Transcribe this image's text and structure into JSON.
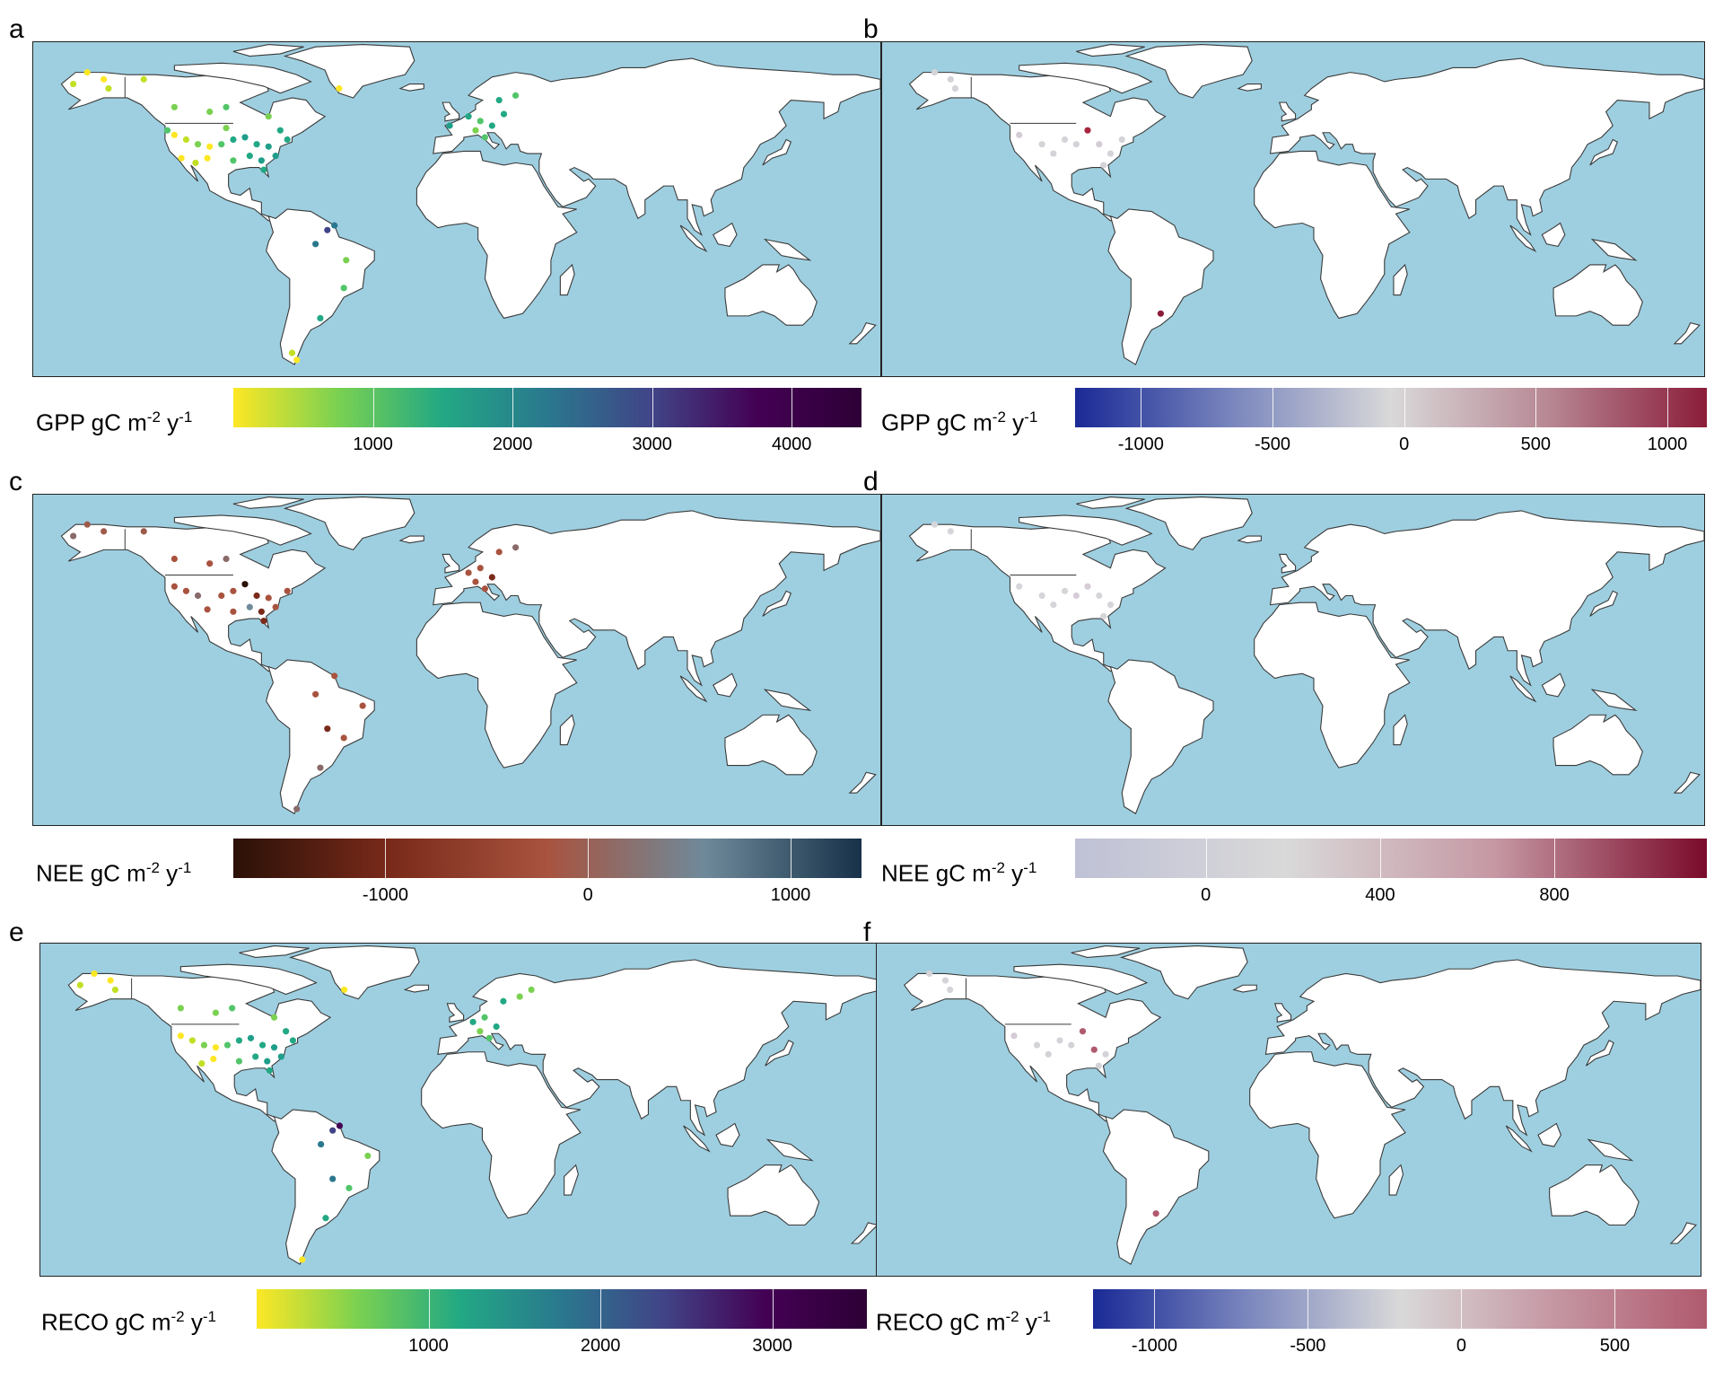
{
  "panels": [
    {
      "id": "a",
      "letter": "a",
      "legend": {
        "variable": "GPP",
        "unit_base": "gC m",
        "exp1": "-2",
        "unit_mid": " y",
        "exp2": "-1",
        "colors": [
          "#fde725",
          "#7ad151",
          "#22a884",
          "#2a788e",
          "#414487",
          "#440154",
          "#2d0036"
        ],
        "range": [
          0,
          4500
        ],
        "ticks": [
          1000,
          2000,
          3000,
          4000
        ]
      },
      "sites": [
        {
          "lon": -150,
          "lat": 68,
          "c": "#fde725"
        },
        {
          "lon": -157,
          "lat": 71,
          "c": "#fde725"
        },
        {
          "lon": -163,
          "lat": 66,
          "c": "#c2df23"
        },
        {
          "lon": -148,
          "lat": 64,
          "c": "#c2df23"
        },
        {
          "lon": -133,
          "lat": 68,
          "c": "#c2df23"
        },
        {
          "lon": -120,
          "lat": 56,
          "c": "#7ad151"
        },
        {
          "lon": -105,
          "lat": 54,
          "c": "#7ad151"
        },
        {
          "lon": -98,
          "lat": 56,
          "c": "#52c569"
        },
        {
          "lon": -80,
          "lat": 52,
          "c": "#7ad151"
        },
        {
          "lon": -75,
          "lat": 46,
          "c": "#22a884"
        },
        {
          "lon": -120,
          "lat": 44,
          "c": "#fde725"
        },
        {
          "lon": -115,
          "lat": 42,
          "c": "#c2df23"
        },
        {
          "lon": -110,
          "lat": 40,
          "c": "#7ad151"
        },
        {
          "lon": -105,
          "lat": 39,
          "c": "#fde725"
        },
        {
          "lon": -100,
          "lat": 40,
          "c": "#52c569"
        },
        {
          "lon": -95,
          "lat": 42,
          "c": "#22a884"
        },
        {
          "lon": -90,
          "lat": 43,
          "c": "#1f9e89"
        },
        {
          "lon": -85,
          "lat": 40,
          "c": "#22a884"
        },
        {
          "lon": -80,
          "lat": 39,
          "c": "#1f9e89"
        },
        {
          "lon": -88,
          "lat": 35,
          "c": "#22a884"
        },
        {
          "lon": -83,
          "lat": 33,
          "c": "#1f9e89"
        },
        {
          "lon": -95,
          "lat": 33,
          "c": "#52c569"
        },
        {
          "lon": -106,
          "lat": 34,
          "c": "#fde725"
        },
        {
          "lon": -111,
          "lat": 32,
          "c": "#c2df23"
        },
        {
          "lon": -117,
          "lat": 34,
          "c": "#fde725"
        },
        {
          "lon": -82,
          "lat": 29,
          "c": "#22a884"
        },
        {
          "lon": -77,
          "lat": 35,
          "c": "#1f9e89"
        },
        {
          "lon": -72,
          "lat": 42,
          "c": "#22a884"
        },
        {
          "lon": -123,
          "lat": 46,
          "c": "#52c569"
        },
        {
          "lon": -98,
          "lat": 47,
          "c": "#7ad151"
        },
        {
          "lon": -50,
          "lat": 64,
          "c": "#fde725"
        },
        {
          "lon": -52,
          "lat": 5,
          "c": "#2a788e"
        },
        {
          "lon": -55,
          "lat": 3,
          "c": "#414487"
        },
        {
          "lon": -60,
          "lat": -3,
          "c": "#2a788e"
        },
        {
          "lon": -47,
          "lat": -10,
          "c": "#7ad151"
        },
        {
          "lon": -48,
          "lat": -22,
          "c": "#52c569"
        },
        {
          "lon": -58,
          "lat": -35,
          "c": "#22a884"
        },
        {
          "lon": -68,
          "lat": -53,
          "c": "#fde725"
        },
        {
          "lon": -70,
          "lat": -50,
          "c": "#c2df23"
        },
        {
          "lon": 5,
          "lat": 52,
          "c": "#22a884"
        },
        {
          "lon": 10,
          "lat": 50,
          "c": "#52c569"
        },
        {
          "lon": 15,
          "lat": 48,
          "c": "#22a884"
        },
        {
          "lon": 8,
          "lat": 46,
          "c": "#7ad151"
        },
        {
          "lon": 25,
          "lat": 61,
          "c": "#52c569"
        },
        {
          "lon": 18,
          "lat": 59,
          "c": "#22a884"
        },
        {
          "lon": 12,
          "lat": 43,
          "c": "#52c569"
        },
        {
          "lon": -3,
          "lat": 48,
          "c": "#1f9e89"
        },
        {
          "lon": 20,
          "lat": 53,
          "c": "#22a884"
        }
      ]
    },
    {
      "id": "b",
      "letter": "b",
      "legend": {
        "variable": "GPP",
        "unit_base": "gC m",
        "exp1": "-2",
        "unit_mid": " y",
        "exp2": "-1",
        "colors": [
          "#1a2a96",
          "#7a86bd",
          "#d9d9d9",
          "#b78794",
          "#8b1d3a"
        ],
        "range": [
          -1250,
          1150
        ],
        "ticks": [
          -1000,
          -500,
          0,
          500,
          1000
        ]
      },
      "sites": [
        {
          "lon": -150,
          "lat": 68,
          "c": "#d3d3d8"
        },
        {
          "lon": -157,
          "lat": 71,
          "c": "#d3d3d8"
        },
        {
          "lon": -148,
          "lat": 64,
          "c": "#d3d3d8"
        },
        {
          "lon": -120,
          "lat": 44,
          "c": "#d5cbd6"
        },
        {
          "lon": -110,
          "lat": 40,
          "c": "#d3d3d8"
        },
        {
          "lon": -100,
          "lat": 42,
          "c": "#d3d3d8"
        },
        {
          "lon": -90,
          "lat": 46,
          "c": "#a8263f"
        },
        {
          "lon": -95,
          "lat": 40,
          "c": "#d3d3d8"
        },
        {
          "lon": -85,
          "lat": 40,
          "c": "#d5cbd6"
        },
        {
          "lon": -80,
          "lat": 36,
          "c": "#d3d3d8"
        },
        {
          "lon": -83,
          "lat": 31,
          "c": "#d3d3d8"
        },
        {
          "lon": -75,
          "lat": 42,
          "c": "#d3d3d8"
        },
        {
          "lon": -105,
          "lat": 36,
          "c": "#d3d3d8"
        },
        {
          "lon": -58,
          "lat": -33,
          "c": "#8b1d3a"
        }
      ]
    },
    {
      "id": "c",
      "letter": "c",
      "legend": {
        "variable": "NEE",
        "unit_base": "gC m",
        "exp1": "-2",
        "unit_mid": " y",
        "exp2": "-1",
        "colors": [
          "#2b1108",
          "#7a2a1a",
          "#a8533f",
          "#6e8a9a",
          "#173149"
        ],
        "range": [
          -1750,
          1350
        ],
        "ticks": [
          -1000,
          0,
          1000
        ]
      },
      "sites": [
        {
          "lon": -150,
          "lat": 68,
          "c": "#9e5a4a"
        },
        {
          "lon": -157,
          "lat": 71,
          "c": "#9e5a4a"
        },
        {
          "lon": -163,
          "lat": 66,
          "c": "#8a6a6a"
        },
        {
          "lon": -133,
          "lat": 68,
          "c": "#9e5a4a"
        },
        {
          "lon": -120,
          "lat": 56,
          "c": "#a8533f"
        },
        {
          "lon": -105,
          "lat": 54,
          "c": "#a8533f"
        },
        {
          "lon": -98,
          "lat": 56,
          "c": "#8a6a6a"
        },
        {
          "lon": -120,
          "lat": 44,
          "c": "#a8533f"
        },
        {
          "lon": -115,
          "lat": 42,
          "c": "#a8533f"
        },
        {
          "lon": -110,
          "lat": 40,
          "c": "#8a6a6a"
        },
        {
          "lon": -100,
          "lat": 40,
          "c": "#a8533f"
        },
        {
          "lon": -95,
          "lat": 42,
          "c": "#a8533f"
        },
        {
          "lon": -90,
          "lat": 45,
          "c": "#2b1108"
        },
        {
          "lon": -85,
          "lat": 40,
          "c": "#7a2a1a"
        },
        {
          "lon": -80,
          "lat": 39,
          "c": "#a8533f"
        },
        {
          "lon": -88,
          "lat": 35,
          "c": "#6e8a9a"
        },
        {
          "lon": -83,
          "lat": 33,
          "c": "#7a2a1a"
        },
        {
          "lon": -95,
          "lat": 33,
          "c": "#a8533f"
        },
        {
          "lon": -106,
          "lat": 34,
          "c": "#a8533f"
        },
        {
          "lon": -82,
          "lat": 29,
          "c": "#7a2a1a"
        },
        {
          "lon": -77,
          "lat": 35,
          "c": "#a8533f"
        },
        {
          "lon": -72,
          "lat": 42,
          "c": "#a8533f"
        },
        {
          "lon": -52,
          "lat": 5,
          "c": "#a8533f"
        },
        {
          "lon": -60,
          "lat": -3,
          "c": "#a8533f"
        },
        {
          "lon": -40,
          "lat": -8,
          "c": "#a8533f"
        },
        {
          "lon": -55,
          "lat": -18,
          "c": "#7a2a1a"
        },
        {
          "lon": -48,
          "lat": -22,
          "c": "#a8533f"
        },
        {
          "lon": -58,
          "lat": -35,
          "c": "#8a6a6a"
        },
        {
          "lon": -68,
          "lat": -53,
          "c": "#8a6a6a"
        },
        {
          "lon": 5,
          "lat": 50,
          "c": "#a8533f"
        },
        {
          "lon": 10,
          "lat": 52,
          "c": "#a8533f"
        },
        {
          "lon": 15,
          "lat": 48,
          "c": "#7a2a1a"
        },
        {
          "lon": 8,
          "lat": 46,
          "c": "#a8533f"
        },
        {
          "lon": 25,
          "lat": 61,
          "c": "#8a6a6a"
        },
        {
          "lon": 18,
          "lat": 59,
          "c": "#a8533f"
        },
        {
          "lon": 12,
          "lat": 43,
          "c": "#a8533f"
        }
      ]
    },
    {
      "id": "d",
      "letter": "d",
      "legend": {
        "variable": "NEE",
        "unit_base": "gC m",
        "exp1": "-2",
        "unit_mid": " y",
        "exp2": "-1",
        "colors": [
          "#bfc1d6",
          "#d9d9d9",
          "#c597a3",
          "#7a0a2a"
        ],
        "range": [
          -300,
          1150
        ],
        "ticks": [
          0,
          400,
          800
        ]
      },
      "sites": [
        {
          "lon": -150,
          "lat": 68,
          "c": "#d5d5da"
        },
        {
          "lon": -157,
          "lat": 71,
          "c": "#d5d5da"
        },
        {
          "lon": -120,
          "lat": 44,
          "c": "#d5d5da"
        },
        {
          "lon": -110,
          "lat": 40,
          "c": "#d5d5da"
        },
        {
          "lon": -100,
          "lat": 42,
          "c": "#d5d5da"
        },
        {
          "lon": -95,
          "lat": 40,
          "c": "#d6ccd6"
        },
        {
          "lon": -85,
          "lat": 40,
          "c": "#d5d5da"
        },
        {
          "lon": -80,
          "lat": 36,
          "c": "#d5d5da"
        },
        {
          "lon": -83,
          "lat": 31,
          "c": "#d5d5da"
        },
        {
          "lon": -90,
          "lat": 44,
          "c": "#d6ccd6"
        },
        {
          "lon": -105,
          "lat": 36,
          "c": "#d5d5da"
        }
      ]
    },
    {
      "id": "e",
      "letter": "e",
      "legend": {
        "variable": "RECO",
        "unit_base": "gC m",
        "exp1": "-2",
        "unit_mid": " y",
        "exp2": "-1",
        "colors": [
          "#fde725",
          "#7ad151",
          "#22a884",
          "#2a788e",
          "#414487",
          "#440154",
          "#2d0036"
        ],
        "range": [
          0,
          3550
        ],
        "ticks": [
          1000,
          2000,
          3000
        ]
      },
      "sites": [
        {
          "lon": -150,
          "lat": 68,
          "c": "#fde725"
        },
        {
          "lon": -157,
          "lat": 71,
          "c": "#fde725"
        },
        {
          "lon": -163,
          "lat": 66,
          "c": "#c2df23"
        },
        {
          "lon": -148,
          "lat": 64,
          "c": "#c2df23"
        },
        {
          "lon": -120,
          "lat": 56,
          "c": "#7ad151"
        },
        {
          "lon": -105,
          "lat": 54,
          "c": "#7ad151"
        },
        {
          "lon": -98,
          "lat": 56,
          "c": "#52c569"
        },
        {
          "lon": -80,
          "lat": 52,
          "c": "#7ad151"
        },
        {
          "lon": -75,
          "lat": 46,
          "c": "#22a884"
        },
        {
          "lon": -120,
          "lat": 44,
          "c": "#fde725"
        },
        {
          "lon": -115,
          "lat": 42,
          "c": "#c2df23"
        },
        {
          "lon": -110,
          "lat": 40,
          "c": "#7ad151"
        },
        {
          "lon": -105,
          "lat": 39,
          "c": "#fde725"
        },
        {
          "lon": -100,
          "lat": 40,
          "c": "#52c569"
        },
        {
          "lon": -95,
          "lat": 42,
          "c": "#22a884"
        },
        {
          "lon": -90,
          "lat": 43,
          "c": "#1f9e89"
        },
        {
          "lon": -85,
          "lat": 40,
          "c": "#22a884"
        },
        {
          "lon": -80,
          "lat": 39,
          "c": "#1f9e89"
        },
        {
          "lon": -88,
          "lat": 35,
          "c": "#22a884"
        },
        {
          "lon": -83,
          "lat": 33,
          "c": "#1f9e89"
        },
        {
          "lon": -95,
          "lat": 33,
          "c": "#52c569"
        },
        {
          "lon": -106,
          "lat": 34,
          "c": "#fde725"
        },
        {
          "lon": -111,
          "lat": 32,
          "c": "#c2df23"
        },
        {
          "lon": -82,
          "lat": 29,
          "c": "#22a884"
        },
        {
          "lon": -77,
          "lat": 35,
          "c": "#1f9e89"
        },
        {
          "lon": -72,
          "lat": 42,
          "c": "#22a884"
        },
        {
          "lon": -50,
          "lat": 64,
          "c": "#fde725"
        },
        {
          "lon": -52,
          "lat": 5,
          "c": "#440154"
        },
        {
          "lon": -55,
          "lat": 3,
          "c": "#414487"
        },
        {
          "lon": -60,
          "lat": -3,
          "c": "#2a788e"
        },
        {
          "lon": -40,
          "lat": -8,
          "c": "#7ad151"
        },
        {
          "lon": -55,
          "lat": -18,
          "c": "#2a788e"
        },
        {
          "lon": -48,
          "lat": -22,
          "c": "#52c569"
        },
        {
          "lon": -58,
          "lat": -35,
          "c": "#22a884"
        },
        {
          "lon": -68,
          "lat": -53,
          "c": "#fde725"
        },
        {
          "lon": 5,
          "lat": 50,
          "c": "#22a884"
        },
        {
          "lon": 10,
          "lat": 52,
          "c": "#52c569"
        },
        {
          "lon": 15,
          "lat": 48,
          "c": "#22a884"
        },
        {
          "lon": 8,
          "lat": 46,
          "c": "#7ad151"
        },
        {
          "lon": 25,
          "lat": 61,
          "c": "#7ad151"
        },
        {
          "lon": 18,
          "lat": 59,
          "c": "#22a884"
        },
        {
          "lon": 12,
          "lat": 43,
          "c": "#52c569"
        },
        {
          "lon": 30,
          "lat": 64,
          "c": "#7ad151"
        }
      ]
    },
    {
      "id": "f",
      "letter": "f",
      "legend": {
        "variable": "RECO",
        "unit_base": "gC m",
        "exp1": "-2",
        "unit_mid": " y",
        "exp2": "-1",
        "colors": [
          "#1a2a96",
          "#7a86bd",
          "#d9d9d9",
          "#c597a3",
          "#b05a6e"
        ],
        "range": [
          -1200,
          800
        ],
        "ticks": [
          -1000,
          -500,
          0,
          500
        ]
      },
      "sites": [
        {
          "lon": -150,
          "lat": 68,
          "c": "#d3d3d8"
        },
        {
          "lon": -157,
          "lat": 71,
          "c": "#d3d3d8"
        },
        {
          "lon": -148,
          "lat": 64,
          "c": "#d3d3d8"
        },
        {
          "lon": -120,
          "lat": 44,
          "c": "#d5cbd6"
        },
        {
          "lon": -110,
          "lat": 40,
          "c": "#d3d3d8"
        },
        {
          "lon": -100,
          "lat": 42,
          "c": "#d3d3d8"
        },
        {
          "lon": -90,
          "lat": 46,
          "c": "#b05a6e"
        },
        {
          "lon": -95,
          "lat": 40,
          "c": "#d3d3d8"
        },
        {
          "lon": -85,
          "lat": 38,
          "c": "#b05a6e"
        },
        {
          "lon": -80,
          "lat": 36,
          "c": "#d3d3d8"
        },
        {
          "lon": -83,
          "lat": 31,
          "c": "#d3d3d8"
        },
        {
          "lon": -105,
          "lat": 36,
          "c": "#d3d3d8"
        },
        {
          "lon": -58,
          "lat": -33,
          "c": "#b05a6e"
        }
      ]
    }
  ]
}
